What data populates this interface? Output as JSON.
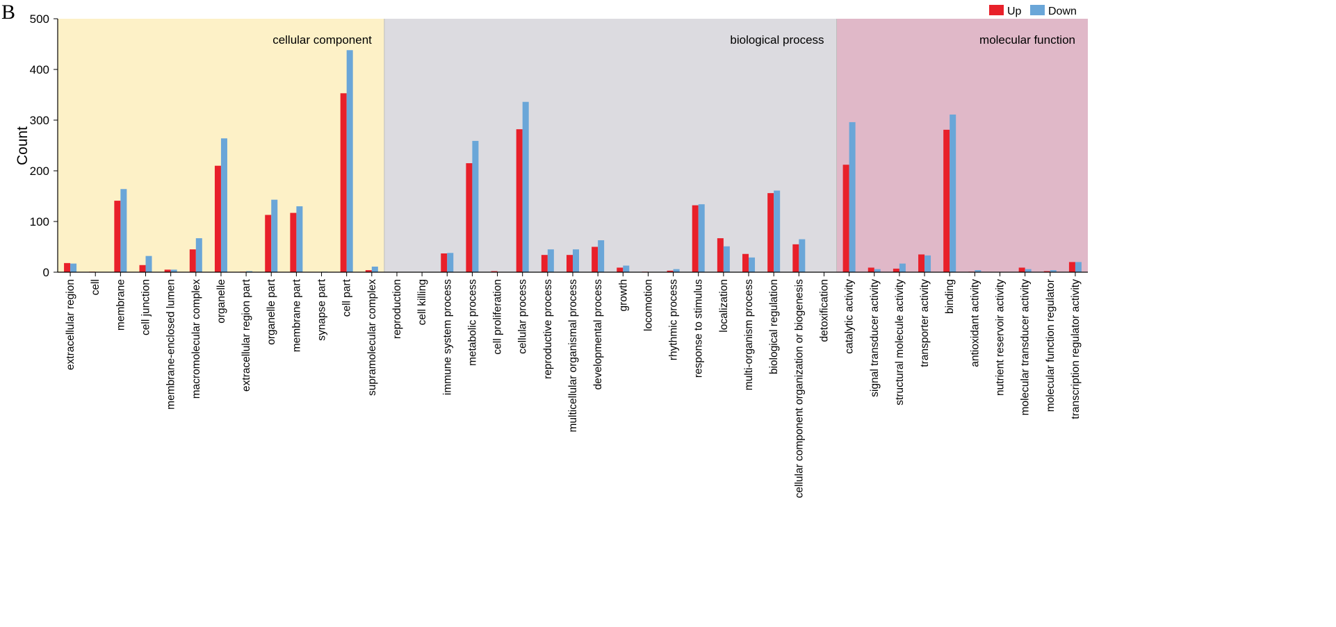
{
  "figure": {
    "panel_letter": "B"
  },
  "chart_data": {
    "type": "bar",
    "ylabel": "Count",
    "ylim": [
      0,
      500
    ],
    "yticks": [
      0,
      100,
      200,
      300,
      400,
      500
    ],
    "legend": {
      "placement": "top-right",
      "entries": [
        "Up",
        "Down"
      ]
    },
    "series_colors": {
      "Up": "#e8202a",
      "Down": "#6aa6d8"
    },
    "groups": [
      {
        "title": "cellular component",
        "background": "#fdf1c7",
        "categories": [
          "extracellular region",
          "cell",
          "membrane",
          "cell junction",
          "membrane-enclosed lumen",
          "macromolecular complex",
          "organelle",
          "extracellular region part",
          "organelle part",
          "membrane part",
          "synapse part",
          "cell part",
          "supramolecular complex"
        ],
        "up": [
          18,
          1,
          141,
          14,
          5,
          45,
          210,
          1,
          113,
          117,
          0,
          353,
          4
        ],
        "down": [
          17,
          0,
          164,
          32,
          5,
          67,
          264,
          2,
          143,
          130,
          1,
          438,
          11
        ]
      },
      {
        "title": "biological process",
        "background": "#dcdbe0",
        "categories": [
          "reproduction",
          "cell killing",
          "immune system process",
          "metabolic process",
          "cell proliferation",
          "cellular process",
          "reproductive process",
          "multicellular organismal process",
          "developmental process",
          "growth",
          "locomotion",
          "rhythmic process",
          "response to stimulus",
          "localization",
          "multi-organism process",
          "biological regulation",
          "cellular component organization or biogenesis",
          "detoxification"
        ],
        "up": [
          0,
          0,
          37,
          215,
          2,
          282,
          34,
          34,
          50,
          9,
          1,
          3,
          132,
          67,
          36,
          156,
          55,
          0
        ],
        "down": [
          0,
          0,
          38,
          259,
          0,
          336,
          45,
          45,
          63,
          13,
          0,
          6,
          134,
          51,
          29,
          161,
          65,
          0
        ]
      },
      {
        "title": "molecular function",
        "background": "#e0b8c8",
        "categories": [
          "catalytic activity",
          "signal transducer activity",
          "structural molecule activity",
          "transporter activity",
          "binding",
          "antioxidant activity",
          "nutrient reservoir activity",
          "molecular transducer activity",
          "molecular function regulator",
          "transcription regulator activity"
        ],
        "up": [
          212,
          9,
          7,
          35,
          281,
          1,
          0,
          9,
          2,
          20
        ],
        "down": [
          296,
          6,
          17,
          33,
          311,
          4,
          0,
          6,
          4,
          20
        ]
      }
    ]
  }
}
